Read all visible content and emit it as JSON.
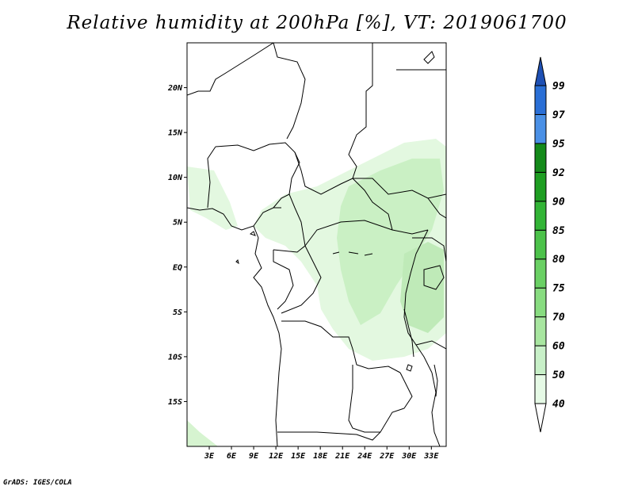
{
  "title": "Relative humidity at 200hPa [%], VT: 2019061700",
  "footer": "GrADS: IGES/COLA",
  "map": {
    "projection": "latlon",
    "lon_range": [
      0,
      35
    ],
    "lat_range": [
      -20,
      25
    ],
    "lon_ticks": [
      3,
      6,
      9,
      12,
      15,
      18,
      21,
      24,
      27,
      30,
      33
    ],
    "lon_labels": [
      "3E",
      "6E",
      "9E",
      "12E",
      "15E",
      "18E",
      "21E",
      "24E",
      "27E",
      "30E",
      "33E"
    ],
    "lat_ticks": [
      20,
      15,
      10,
      5,
      0,
      -5,
      -10,
      -15
    ],
    "lat_labels": [
      "20N",
      "15N",
      "10N",
      "5N",
      "EQ",
      "5S",
      "10S",
      "15S"
    ]
  },
  "colorbar": {
    "levels": [
      "40",
      "50",
      "60",
      "70",
      "75",
      "80",
      "85",
      "90",
      "92",
      "95",
      "97",
      "99"
    ],
    "colors": [
      "#ffffff",
      "#e6fae6",
      "#c8f0c8",
      "#a8e6a0",
      "#88dc80",
      "#6ad064",
      "#4cc24a",
      "#32b436",
      "#1e9e22",
      "#148a1a",
      "#4a90e6",
      "#2a6fd6",
      "#1e50b4"
    ]
  }
}
